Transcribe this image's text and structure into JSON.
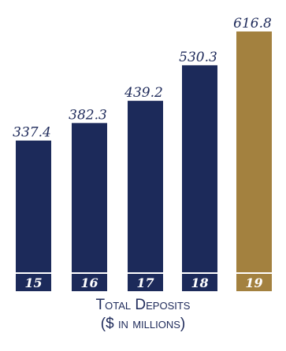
{
  "chart_data": {
    "type": "bar",
    "categories": [
      "15",
      "16",
      "17",
      "18",
      "19"
    ],
    "values": [
      337.4,
      382.3,
      439.2,
      530.3,
      616.8
    ],
    "value_labels": [
      "337.4",
      "382.3",
      "439.2",
      "530.3",
      "616.8"
    ],
    "title_line1": "Total Deposits",
    "title_line2": "($ in millions)",
    "ylim": [
      0,
      616.8
    ],
    "colors": {
      "default": "#1c2a5a",
      "highlight": "#a3813f"
    },
    "highlight_index": 4
  }
}
